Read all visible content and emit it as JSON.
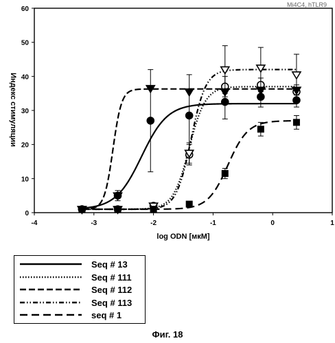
{
  "chart_data": {
    "type": "line",
    "subtitle": "Mi4C4, hTLR9",
    "xlabel": "log ODN [мкМ]",
    "ylabel": "Индекс стимуляции",
    "xlim": [
      -4,
      1
    ],
    "ylim": [
      0,
      60
    ],
    "xticks": [
      -4,
      -3,
      -2,
      -1,
      0,
      1
    ],
    "yticks": [
      0,
      10,
      20,
      30,
      40,
      50,
      60
    ],
    "grid": false,
    "legend_position": "below",
    "series": [
      {
        "name": "Seq # 13",
        "dash": "solid",
        "marker": "circle-filled",
        "points": [
          {
            "x": -3.2,
            "y": 1.0,
            "err": 0
          },
          {
            "x": -2.6,
            "y": 5.0,
            "err": 1.5
          },
          {
            "x": -2.05,
            "y": 27.0,
            "err": 15.0
          },
          {
            "x": -1.4,
            "y": 28.5,
            "err": 12.0
          },
          {
            "x": -0.8,
            "y": 32.5,
            "err": 5.0
          },
          {
            "x": -0.2,
            "y": 34.0,
            "err": 3.0
          },
          {
            "x": 0.4,
            "y": 33.0,
            "err": 2.0
          }
        ],
        "fit": {
          "bottom": 1,
          "top": 32,
          "ec50": -2.2,
          "hill": 2.0
        }
      },
      {
        "name": "Seq # 111",
        "dash": "dotted",
        "marker": "circle-open",
        "points": [
          {
            "x": -3.2,
            "y": 1.0,
            "err": 0
          },
          {
            "x": -2.6,
            "y": 1.0,
            "err": 0
          },
          {
            "x": -2.0,
            "y": 2.0,
            "err": 0
          },
          {
            "x": -1.4,
            "y": 17.0,
            "err": 3.0
          },
          {
            "x": -0.8,
            "y": 37.0,
            "err": 3.0
          },
          {
            "x": -0.2,
            "y": 37.5,
            "err": 2.0
          },
          {
            "x": 0.4,
            "y": 35.5,
            "err": 2.0
          }
        ],
        "fit": {
          "bottom": 1,
          "top": 37,
          "ec50": -1.4,
          "hill": 3.2
        }
      },
      {
        "name": "Seq # 112",
        "dash": "dashed",
        "marker": "triangle-down-filled",
        "points": [
          {
            "x": -3.2,
            "y": 1.0,
            "err": 0
          },
          {
            "x": -2.6,
            "y": 5.0,
            "err": 0
          },
          {
            "x": -2.05,
            "y": 36.5,
            "err": 0
          },
          {
            "x": -1.4,
            "y": 35.5,
            "err": 0
          },
          {
            "x": -0.8,
            "y": 35.5,
            "err": 0
          },
          {
            "x": -0.2,
            "y": 36.0,
            "err": 0
          },
          {
            "x": 0.4,
            "y": 36.0,
            "err": 0
          }
        ],
        "fit": {
          "bottom": 1,
          "top": 36.3,
          "ec50": -2.68,
          "hill": 6.0
        }
      },
      {
        "name": "Seq # 113",
        "dash": "dash-dot-dot",
        "marker": "triangle-down-open",
        "points": [
          {
            "x": -3.2,
            "y": 1.0,
            "err": 0
          },
          {
            "x": -2.6,
            "y": 1.0,
            "err": 0
          },
          {
            "x": -2.0,
            "y": 2.0,
            "err": 0
          },
          {
            "x": -1.4,
            "y": 17.5,
            "err": 3.0
          },
          {
            "x": -0.8,
            "y": 42.0,
            "err": 7.0
          },
          {
            "x": -0.2,
            "y": 42.5,
            "err": 6.0
          },
          {
            "x": 0.4,
            "y": 40.5,
            "err": 6.0
          }
        ],
        "fit": {
          "bottom": 1,
          "top": 42,
          "ec50": -1.37,
          "hill": 3.5
        }
      },
      {
        "name": "seq # 1",
        "dash": "long-dashed",
        "marker": "square-filled",
        "points": [
          {
            "x": -3.2,
            "y": 1.0,
            "err": 0
          },
          {
            "x": -2.6,
            "y": 1.0,
            "err": 0
          },
          {
            "x": -2.0,
            "y": 1.0,
            "err": 0
          },
          {
            "x": -1.4,
            "y": 2.5,
            "err": 0
          },
          {
            "x": -0.8,
            "y": 11.5,
            "err": 1.5
          },
          {
            "x": -0.2,
            "y": 24.5,
            "err": 2.0
          },
          {
            "x": 0.4,
            "y": 26.5,
            "err": 2.0
          }
        ],
        "fit": {
          "bottom": 1,
          "top": 27,
          "ec50": -0.75,
          "hill": 2.6
        }
      }
    ]
  },
  "caption": "Фиг. 18"
}
